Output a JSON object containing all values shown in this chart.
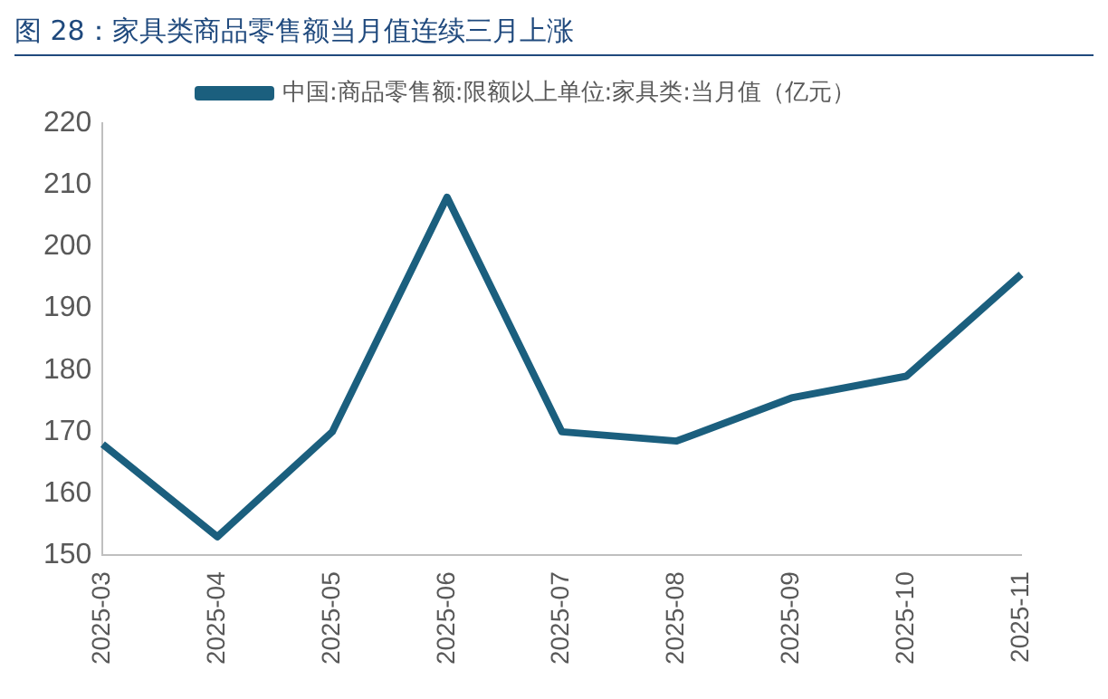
{
  "chart_data": {
    "type": "line",
    "title": "图 28：家具类商品零售额当月值连续三月上涨",
    "categories": [
      "2025-03",
      "2025-04",
      "2025-05",
      "2025-06",
      "2025-07",
      "2025-08",
      "2025-09",
      "2025-10",
      "2025-11"
    ],
    "series": [
      {
        "name": "中国:商品零售额:限额以上单位:家具类:当月值（亿元）",
        "color": "#1b5f7e",
        "values": [
          168,
          153,
          170,
          208,
          170,
          168.5,
          175.5,
          179,
          195.5
        ]
      }
    ],
    "ylim": [
      150,
      220
    ],
    "yticks": [
      150,
      160,
      170,
      180,
      190,
      200,
      210,
      220
    ],
    "grid": false,
    "legend": "top",
    "marker": "none",
    "line_style": "solid"
  }
}
